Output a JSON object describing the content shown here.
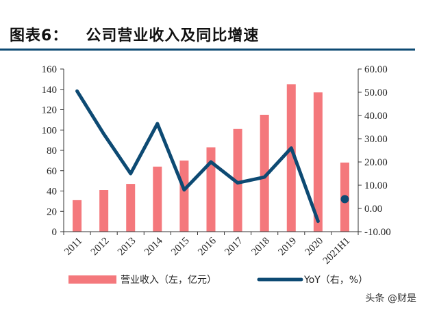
{
  "header": {
    "label": "图表6：",
    "title": "公司营业收入及同比增速"
  },
  "chart_data": {
    "type": "bar+line",
    "categories": [
      "2011",
      "2012",
      "2013",
      "2014",
      "2015",
      "2016",
      "2017",
      "2018",
      "2019",
      "2020",
      "2021H1"
    ],
    "series": [
      {
        "name": "营业收入（左，亿元）",
        "type": "bar",
        "axis": "left",
        "color": "#f4787c",
        "values": [
          31,
          41,
          47,
          64,
          70,
          83,
          101,
          115,
          145,
          137,
          68
        ]
      },
      {
        "name": "YoY（右，%）",
        "type": "line",
        "axis": "right",
        "color": "#0d4a73",
        "values": [
          50.5,
          32.0,
          15.0,
          36.5,
          8.0,
          20.0,
          11.0,
          13.5,
          26.0,
          -5.5,
          4.0
        ],
        "connected_count": 10
      }
    ],
    "y_left": {
      "min": 0,
      "max": 160,
      "step": 20,
      "ticks": [
        "0",
        "20",
        "40",
        "60",
        "80",
        "100",
        "120",
        "140",
        "160"
      ]
    },
    "y_right": {
      "min": -10,
      "max": 60,
      "step": 10,
      "ticks": [
        "-10.00",
        "0.00",
        "10.00",
        "20.00",
        "30.00",
        "40.00",
        "50.00",
        "60.00"
      ]
    },
    "grid": false,
    "legend_position": "bottom"
  },
  "watermark": "头条 @财是"
}
